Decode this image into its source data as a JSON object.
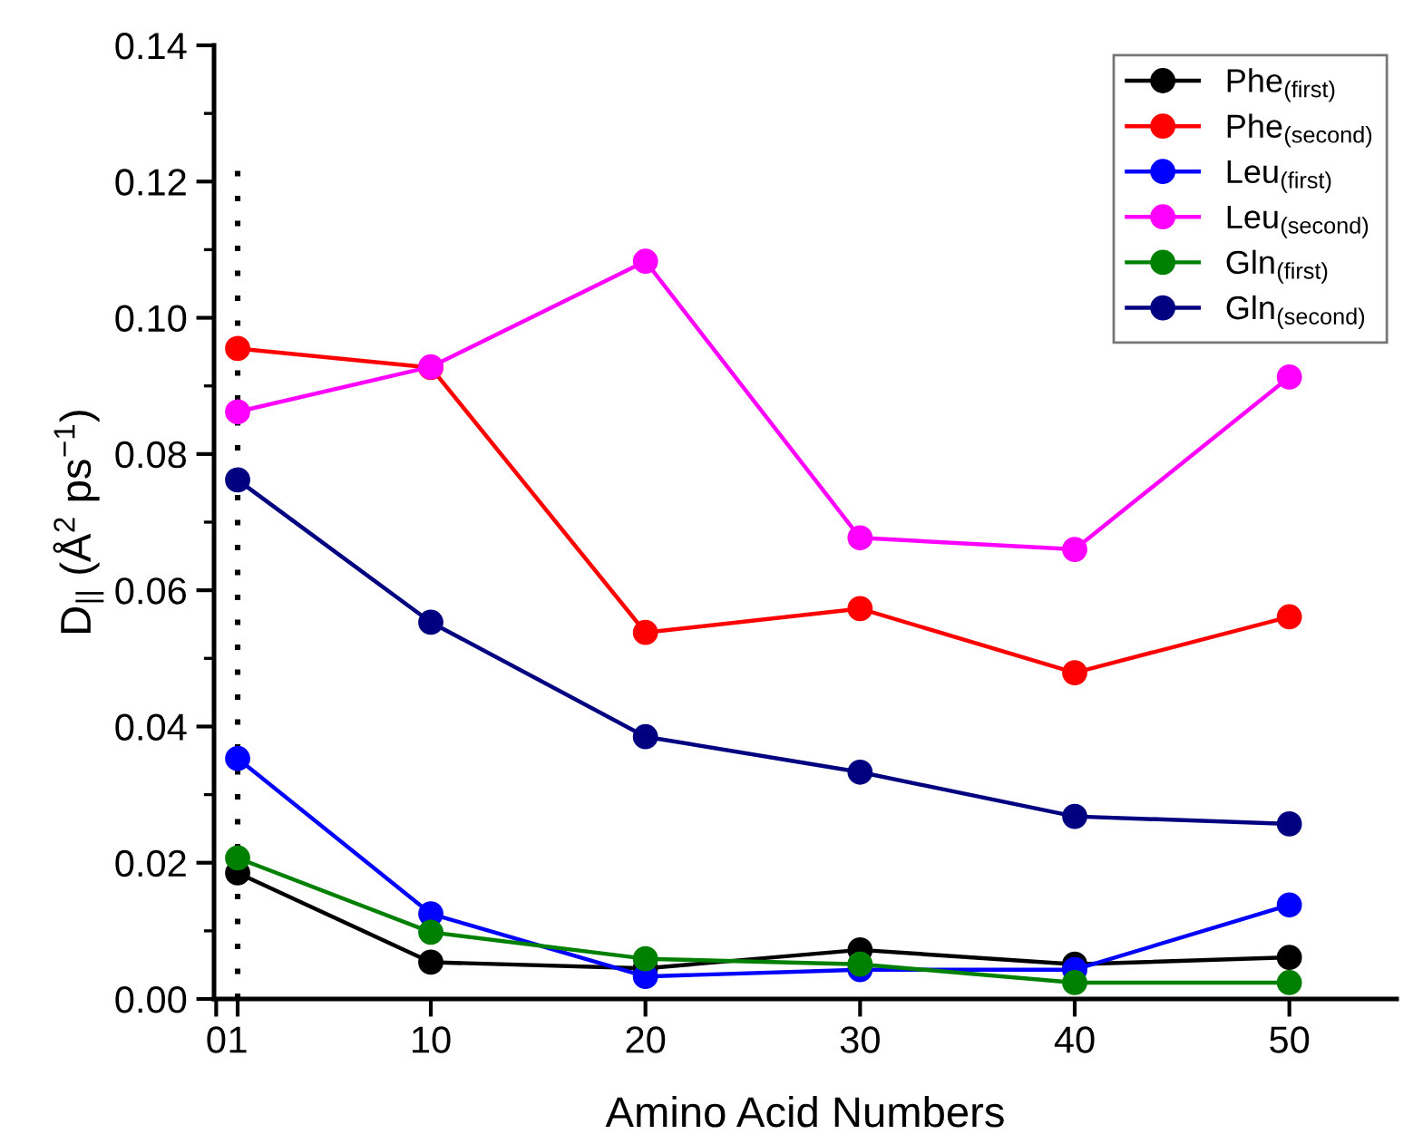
{
  "chart_data": {
    "type": "line",
    "xlabel": "Amino Acid Numbers",
    "ylabel": "D$_{||}$ (Å$^{2}$ ps$^{−1}$)",
    "x": [
      1,
      10,
      20,
      30,
      40,
      50
    ],
    "xlim": [
      -0.1,
      55
    ],
    "xticks": [
      0,
      1,
      10,
      20,
      30,
      40,
      50
    ],
    "ylim": [
      0,
      0.14
    ],
    "yticks": [
      {
        "value": 0,
        "label": "0.00"
      },
      {
        "value": 0.02,
        "label": "0.02"
      },
      {
        "value": 0.04,
        "label": "0.04"
      },
      {
        "value": 0.06,
        "label": "0.06"
      },
      {
        "value": 0.08,
        "label": "0.08"
      },
      {
        "value": 0.1,
        "label": "0.10"
      },
      {
        "value": 0.12,
        "label": "0.12"
      },
      {
        "value": 0.14,
        "label": "0.14"
      }
    ],
    "marker": "circle",
    "line_style": "solid",
    "grid": false,
    "legend": "top right",
    "ref_lines": [
      {
        "axis": "x",
        "value": 1,
        "color": "#000000",
        "line_style": "dotted"
      }
    ],
    "series": [
      {
        "name": "Phe$_{(first)}$",
        "color": "#000000",
        "values": [
          0.0185,
          0.0054,
          0.0045,
          0.0072,
          0.0051,
          0.0061
        ]
      },
      {
        "name": "Phe$_{(second)}$",
        "color": "#ff0000",
        "values": [
          0.0955,
          0.0927,
          0.0538,
          0.0573,
          0.0479,
          0.0561
        ]
      },
      {
        "name": "Leu$_{(first)}$",
        "color": "#0000ff",
        "values": [
          0.0353,
          0.0125,
          0.0033,
          0.0043,
          0.0043,
          0.0138
        ]
      },
      {
        "name": "Leu$_{(second)}$",
        "color": "#ff00ff",
        "values": [
          0.0862,
          0.0928,
          0.1083,
          0.0677,
          0.066,
          0.0913
        ]
      },
      {
        "name": "Gln$_{(first)}$",
        "color": "#008000",
        "values": [
          0.0207,
          0.0098,
          0.0059,
          0.0051,
          0.0024,
          0.0024
        ]
      },
      {
        "name": "Gln$_{(second)}$",
        "color": "#000080",
        "values": [
          0.0762,
          0.0553,
          0.0385,
          0.0333,
          0.0268,
          0.0257
        ]
      }
    ]
  }
}
